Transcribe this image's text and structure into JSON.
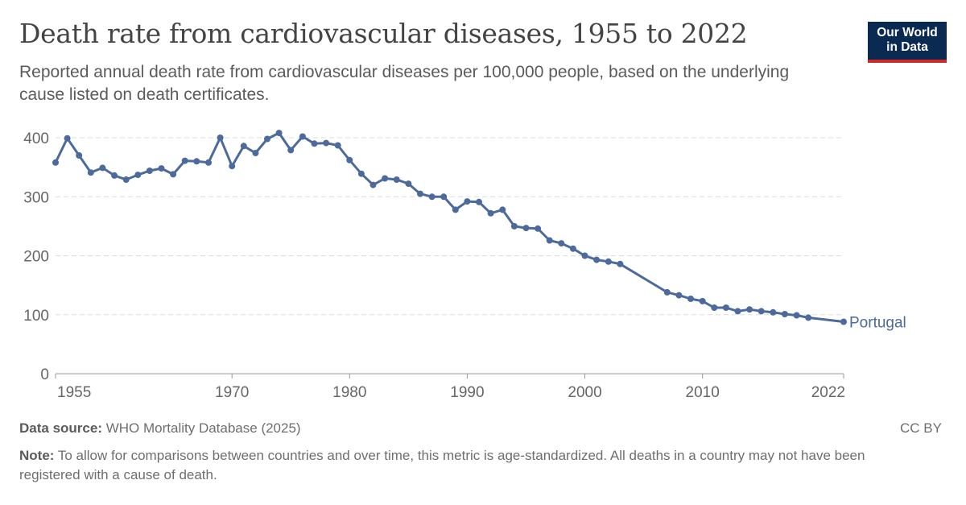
{
  "header": {
    "title": "Death rate from cardiovascular diseases, 1955 to 2022",
    "subtitle": "Reported annual death rate from cardiovascular diseases per 100,000 people, based on the underlying cause listed on death certificates."
  },
  "logo": {
    "line1": "Our World",
    "line2": "in Data",
    "bg_color": "#0b2a52",
    "accent_color": "#ce2a2a"
  },
  "footer": {
    "source_label": "Data source:",
    "source_text": "WHO Mortality Database (2025)",
    "license": "CC BY",
    "note_label": "Note:",
    "note_text": "To allow for comparisons between countries and over time, this metric is age-standardized. All deaths in a country may not have been registered with a cause of death."
  },
  "chart_data": {
    "type": "line",
    "xlim": [
      1955,
      2022
    ],
    "ylim": [
      0,
      400
    ],
    "y_ticks": [
      0,
      100,
      200,
      300,
      400
    ],
    "x_ticks": [
      1955,
      1970,
      1980,
      1990,
      2000,
      2010,
      2022
    ],
    "grid": "horizontal-dashed",
    "line_color": "#4c6a9c",
    "series": [
      {
        "name": "Portugal",
        "x": [
          1955,
          1956,
          1957,
          1958,
          1959,
          1960,
          1961,
          1962,
          1963,
          1964,
          1965,
          1966,
          1967,
          1968,
          1969,
          1970,
          1971,
          1972,
          1973,
          1974,
          1975,
          1976,
          1977,
          1978,
          1979,
          1980,
          1981,
          1982,
          1983,
          1984,
          1985,
          1986,
          1987,
          1988,
          1989,
          1990,
          1991,
          1992,
          1993,
          1994,
          1995,
          1996,
          1997,
          1998,
          1999,
          2000,
          2001,
          2002,
          2003,
          2007,
          2008,
          2009,
          2010,
          2011,
          2012,
          2013,
          2014,
          2015,
          2016,
          2017,
          2018,
          2019,
          2022
        ],
        "y": [
          358,
          399,
          370,
          341,
          349,
          336,
          329,
          337,
          344,
          348,
          338,
          361,
          360,
          358,
          400,
          352,
          386,
          374,
          398,
          408,
          379,
          402,
          390,
          391,
          387,
          362,
          339,
          320,
          331,
          329,
          322,
          305,
          300,
          300,
          278,
          292,
          291,
          272,
          278,
          250,
          247,
          246,
          226,
          221,
          212,
          200,
          193,
          190,
          186,
          138,
          133,
          127,
          123,
          112,
          112,
          106,
          109,
          106,
          104,
          101,
          99,
          95,
          88
        ]
      }
    ]
  }
}
